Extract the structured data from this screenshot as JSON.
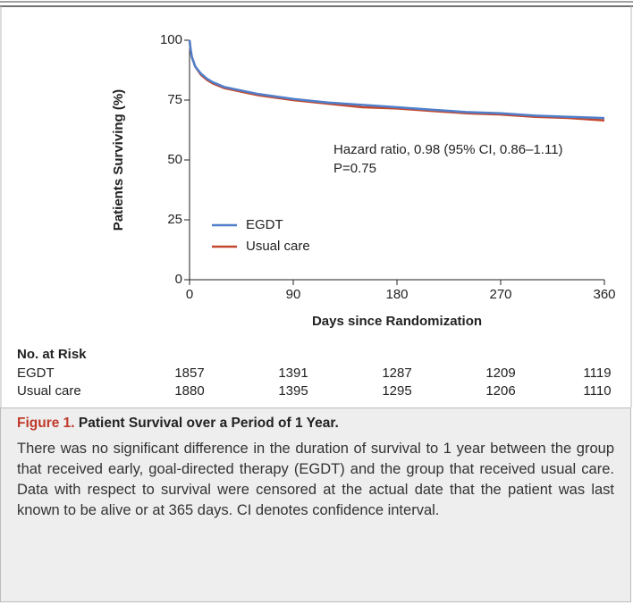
{
  "chart_data": {
    "type": "line",
    "ylabel": "Patients Surviving (%)",
    "xlabel": "Days since Randomization",
    "x": [
      0,
      1,
      2,
      5,
      10,
      15,
      20,
      30,
      45,
      60,
      90,
      120,
      150,
      180,
      210,
      240,
      270,
      300,
      330,
      360
    ],
    "series": [
      {
        "name": "EGDT",
        "color": "#4f7fcb",
        "values": [
          100,
          96,
          93,
          89,
          86,
          84,
          82.5,
          80.5,
          79,
          77.5,
          75.5,
          74,
          73,
          72,
          71,
          70,
          69.5,
          68.5,
          68,
          67.5
        ]
      },
      {
        "name": "Usual care",
        "color": "#c4482e",
        "values": [
          100,
          95.5,
          93,
          89,
          85.5,
          83.5,
          82,
          80,
          78.5,
          77,
          75,
          73.5,
          72,
          71.5,
          70.5,
          69.5,
          69,
          68,
          67.5,
          66.5
        ]
      }
    ],
    "xlim": [
      0,
      360
    ],
    "xticks": [
      0,
      90,
      180,
      270,
      360
    ],
    "ylim": [
      0,
      100
    ],
    "yticks": [
      0,
      25,
      50,
      75,
      100
    ],
    "annotations": [
      "Hazard ratio, 0.98 (95% CI, 0.86–1.11)",
      "P=0.75"
    ],
    "risk_table": {
      "title": "No. at Risk",
      "rows": [
        {
          "name": "EGDT",
          "values": [
            1857,
            1391,
            1287,
            1209,
            1119
          ]
        },
        {
          "name": "Usual care",
          "values": [
            1880,
            1395,
            1295,
            1206,
            1110
          ]
        }
      ]
    }
  },
  "caption": {
    "label": "Figure 1.",
    "title": "Patient Survival over a Period of 1 Year.",
    "text": "There was no significant difference in the duration of survival to 1 year between the group that received early, goal-directed therapy (EGDT) and the group that received usual care. Data with respect to survival were censored at the actual date that the patient was last known to be alive or at 365 days. CI denotes confidence interval."
  }
}
